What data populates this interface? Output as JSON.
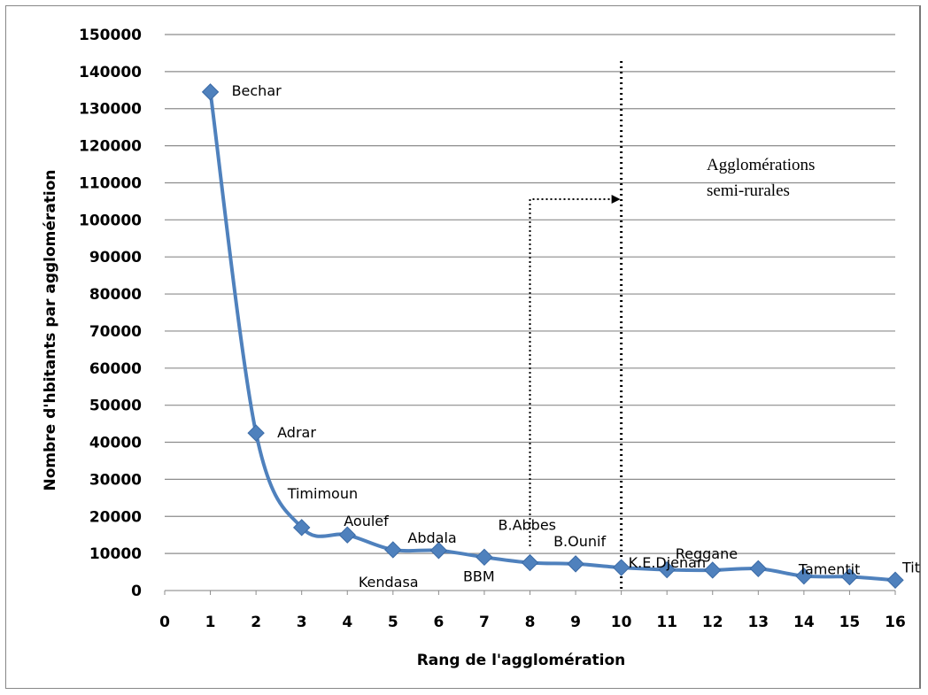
{
  "chart_data": {
    "type": "line",
    "xlabel": "Rang de l'agglomération",
    "ylabel": "Nombre d'hbitants par agglomération",
    "xlim": [
      0,
      16
    ],
    "ylim": [
      0,
      150000
    ],
    "x_ticks": [
      "0",
      "1",
      "2",
      "3",
      "4",
      "5",
      "6",
      "7",
      "8",
      "9",
      "10",
      "11",
      "12",
      "13",
      "14",
      "15",
      "16"
    ],
    "y_ticks": [
      "0",
      "10000",
      "20000",
      "30000",
      "40000",
      "50000",
      "60000",
      "70000",
      "80000",
      "90000",
      "100000",
      "110000",
      "120000",
      "130000",
      "140000",
      "150000"
    ],
    "grid": "horizontal",
    "series": [
      {
        "color": "#4f81bd",
        "marker": "diamond",
        "x": [
          1,
          2,
          3,
          4,
          5,
          6,
          7,
          8,
          9,
          10,
          11,
          12,
          13,
          14,
          15,
          16
        ],
        "y": [
          134500,
          42500,
          17000,
          15000,
          11000,
          10800,
          9000,
          7500,
          7200,
          6200,
          5600,
          5500,
          5900,
          3900,
          3700,
          2800
        ],
        "labels": [
          "Bechar",
          "Adrar",
          "Timimoun",
          "Aoulef",
          "Kendasa",
          "Abdala",
          "BBM",
          "B.Abbes",
          "B.Ounif",
          "K.E.Djenan",
          "",
          "Reggane",
          "",
          "Tamentit",
          "",
          "Tit"
        ]
      }
    ],
    "annotation": {
      "text_line1": "Agglomérations",
      "text_line2": "semi-rurales",
      "divider_x": 10,
      "arrow_from_x": 8
    }
  }
}
